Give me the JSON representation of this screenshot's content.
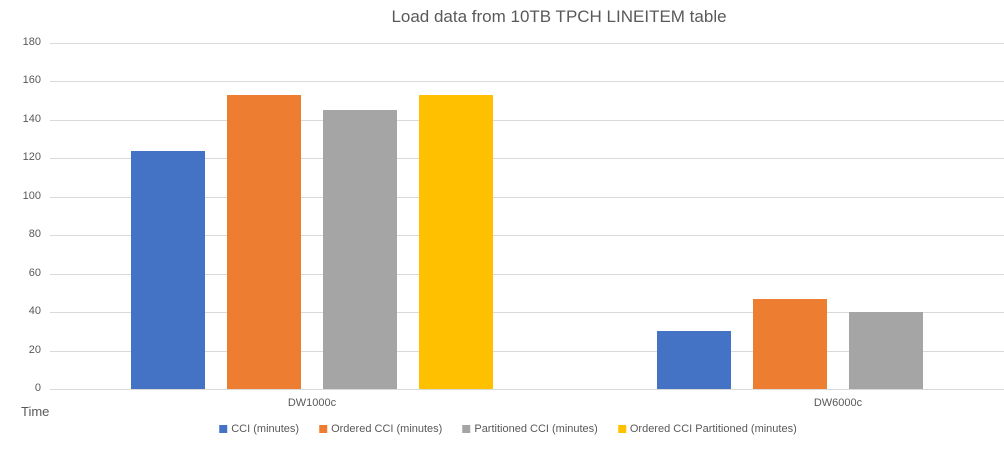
{
  "chart_data": {
    "type": "bar",
    "title": "Load data from 10TB TPCH LINEITEM table",
    "xlabel": "",
    "ylabel": "Time",
    "categories": [
      "DW1000c",
      "DW6000c"
    ],
    "series": [
      {
        "name": "CCI (minutes)",
        "color": "#4472C4",
        "values": [
          124,
          30
        ]
      },
      {
        "name": "Ordered CCI (minutes)",
        "color": "#ED7D31",
        "values": [
          153,
          47
        ]
      },
      {
        "name": "Partitioned CCI (minutes)",
        "color": "#A5A5A5",
        "values": [
          145,
          40
        ]
      },
      {
        "name": "Ordered CCI Partitioned (minutes)",
        "color": "#FFC000",
        "values": [
          153,
          null
        ]
      }
    ],
    "ylim": [
      0,
      180
    ],
    "yticks": [
      0,
      20,
      40,
      60,
      80,
      100,
      120,
      140,
      160,
      180
    ],
    "grid": true,
    "legend_position": "bottom",
    "colors": {
      "grid": "#D9D9D9",
      "axis": "#D9D9D9",
      "text": "#595959",
      "background": "#FFFFFF"
    }
  }
}
